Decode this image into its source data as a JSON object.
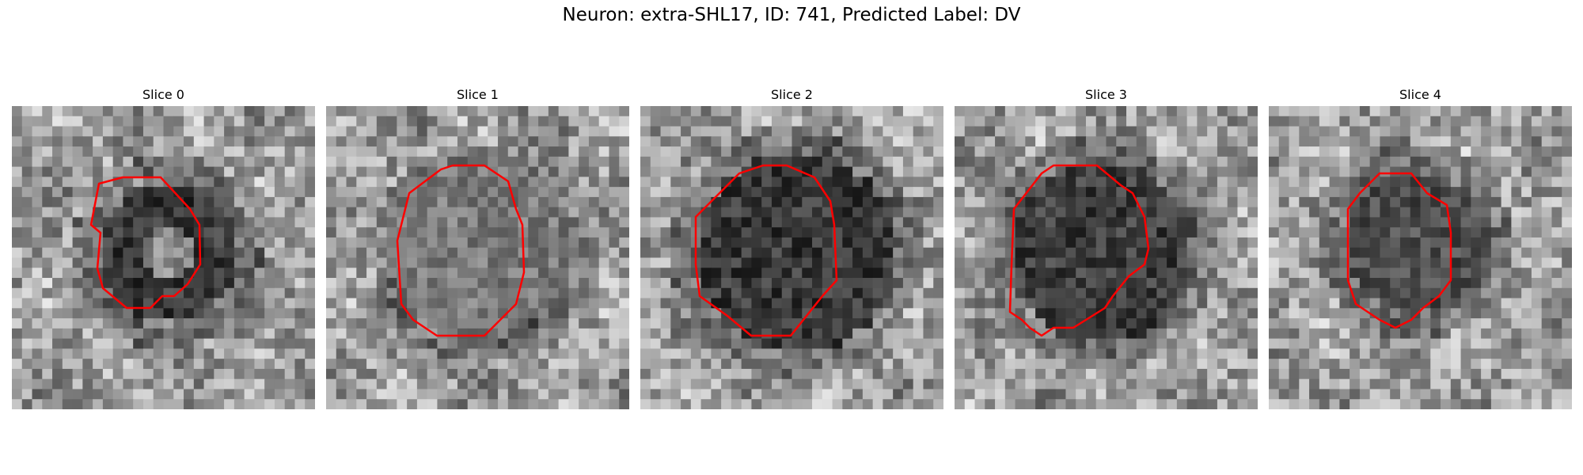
{
  "figure": {
    "title": "Neuron: extra-SHL17, ID: 741, Predicted Label: DV",
    "contour_color": "#ff0000"
  },
  "panels": [
    {
      "title": "Slice 0"
    },
    {
      "title": "Slice 1"
    },
    {
      "title": "Slice 2"
    },
    {
      "title": "Slice 3"
    },
    {
      "title": "Slice 4"
    }
  ]
}
